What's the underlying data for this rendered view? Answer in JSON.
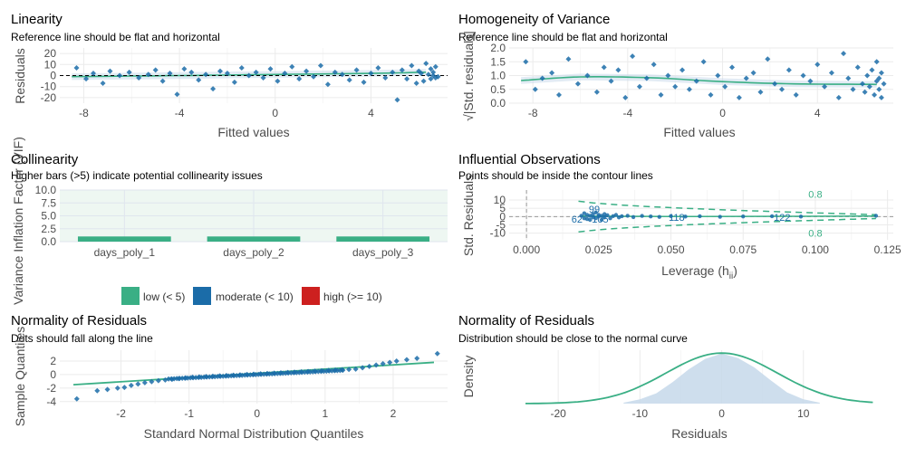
{
  "colors": {
    "green": "#3aaf85",
    "blue": "#1b6ca8",
    "red": "#cd201f",
    "point": "#1b6ca8",
    "band": "#c6d8ea"
  },
  "chart_data": [
    {
      "id": "linearity",
      "type": "scatter",
      "title": "Linearity",
      "subtitle": "Reference line should be flat and horizontal",
      "xlabel": "Fitted values",
      "ylabel": "Residuals",
      "xlim": [
        -9,
        7.2
      ],
      "ylim": [
        -25,
        25
      ],
      "xticks": [
        -8,
        -4,
        0,
        4
      ],
      "xtick_labels": [
        "-8",
        "-4",
        "0",
        "4"
      ],
      "yticks": [
        -20,
        -10,
        0,
        10,
        20
      ],
      "ytick_labels": [
        "-20",
        "-10",
        "0",
        "10",
        "20"
      ],
      "reference_line": 0,
      "smooth_line": {
        "x": [
          -8.5,
          -4,
          0,
          4,
          6.3
        ],
        "y": [
          -1,
          0,
          1,
          2,
          3
        ]
      },
      "points": [
        [
          -8.3,
          7
        ],
        [
          -7.9,
          -3
        ],
        [
          -7.6,
          2
        ],
        [
          -7.2,
          -7
        ],
        [
          -6.9,
          4
        ],
        [
          -6.5,
          0
        ],
        [
          -6.1,
          3
        ],
        [
          -5.7,
          -2
        ],
        [
          -5.3,
          1
        ],
        [
          -5,
          5
        ],
        [
          -4.7,
          -5
        ],
        [
          -4.4,
          2
        ],
        [
          -4.1,
          -17
        ],
        [
          -3.8,
          6
        ],
        [
          -3.5,
          3
        ],
        [
          -3.2,
          -4
        ],
        [
          -2.9,
          1
        ],
        [
          -2.6,
          -12
        ],
        [
          -2.3,
          4
        ],
        [
          -2,
          2
        ],
        [
          -1.7,
          -6
        ],
        [
          -1.4,
          7
        ],
        [
          -1.1,
          0
        ],
        [
          -0.8,
          3
        ],
        [
          -0.5,
          -2
        ],
        [
          -0.2,
          6
        ],
        [
          0.1,
          -5
        ],
        [
          0.4,
          2
        ],
        [
          0.7,
          8
        ],
        [
          1,
          -3
        ],
        [
          1.3,
          4
        ],
        [
          1.6,
          -1
        ],
        [
          1.9,
          9
        ],
        [
          2.2,
          -8
        ],
        [
          2.5,
          3
        ],
        [
          2.8,
          1
        ],
        [
          3.1,
          -4
        ],
        [
          3.4,
          5
        ],
        [
          3.7,
          -6
        ],
        [
          4,
          2
        ],
        [
          4.3,
          7
        ],
        [
          4.6,
          -2
        ],
        [
          4.9,
          3
        ],
        [
          5.1,
          -22
        ],
        [
          5.3,
          5
        ],
        [
          5.5,
          -3
        ],
        [
          5.7,
          9
        ],
        [
          5.9,
          -7
        ],
        [
          6,
          4
        ],
        [
          6.1,
          2
        ],
        [
          6.2,
          -5
        ],
        [
          6.3,
          11
        ],
        [
          6.4,
          1
        ],
        [
          6.5,
          -3
        ],
        [
          6.5,
          6
        ],
        [
          6.6,
          0
        ],
        [
          6.6,
          3
        ],
        [
          6.7,
          -2
        ],
        [
          6.7,
          8
        ],
        [
          6.8,
          -1
        ]
      ]
    },
    {
      "id": "homogeneity",
      "type": "scatter",
      "title": "Homogeneity of Variance",
      "subtitle": "Reference line should be flat and horizontal",
      "xlabel": "Fitted values",
      "ylabel": "√|Std. residuals|",
      "xlim": [
        -9,
        7.2
      ],
      "ylim": [
        0,
        2
      ],
      "xticks": [
        -8,
        -4,
        0,
        4
      ],
      "xtick_labels": [
        "-8",
        "-4",
        "0",
        "4"
      ],
      "yticks": [
        0,
        0.5,
        1,
        1.5,
        2
      ],
      "ytick_labels": [
        "0.0",
        "0.5",
        "1.0",
        "1.5",
        "2.0"
      ],
      "smooth_line": {
        "x": [
          -8.5,
          -6,
          -3,
          0,
          3,
          6.5
        ],
        "y": [
          0.82,
          0.95,
          0.92,
          0.78,
          0.7,
          0.68
        ]
      },
      "points": [
        [
          -8.3,
          1.5
        ],
        [
          -7.9,
          0.5
        ],
        [
          -7.6,
          0.9
        ],
        [
          -7.2,
          1.1
        ],
        [
          -6.9,
          0.3
        ],
        [
          -6.5,
          1.6
        ],
        [
          -6.1,
          0.7
        ],
        [
          -5.7,
          1.0
        ],
        [
          -5.3,
          0.4
        ],
        [
          -5,
          1.3
        ],
        [
          -4.7,
          0.8
        ],
        [
          -4.4,
          1.2
        ],
        [
          -4.1,
          0.2
        ],
        [
          -3.8,
          1.7
        ],
        [
          -3.5,
          0.6
        ],
        [
          -3.2,
          0.9
        ],
        [
          -2.9,
          1.4
        ],
        [
          -2.6,
          0.3
        ],
        [
          -2.3,
          1.0
        ],
        [
          -2,
          0.6
        ],
        [
          -1.7,
          1.2
        ],
        [
          -1.4,
          0.5
        ],
        [
          -1.1,
          0.8
        ],
        [
          -0.8,
          1.5
        ],
        [
          -0.5,
          0.3
        ],
        [
          -0.2,
          1.0
        ],
        [
          0.1,
          0.6
        ],
        [
          0.4,
          1.3
        ],
        [
          0.7,
          0.2
        ],
        [
          1,
          0.9
        ],
        [
          1.3,
          1.1
        ],
        [
          1.6,
          0.4
        ],
        [
          1.9,
          1.6
        ],
        [
          2.2,
          0.7
        ],
        [
          2.5,
          0.5
        ],
        [
          2.8,
          1.2
        ],
        [
          3.1,
          0.3
        ],
        [
          3.4,
          1.0
        ],
        [
          3.7,
          0.8
        ],
        [
          4,
          1.4
        ],
        [
          4.3,
          0.6
        ],
        [
          4.6,
          1.1
        ],
        [
          4.9,
          0.2
        ],
        [
          5.1,
          1.8
        ],
        [
          5.3,
          0.9
        ],
        [
          5.5,
          0.5
        ],
        [
          5.7,
          1.3
        ],
        [
          5.9,
          0.7
        ],
        [
          6,
          0.4
        ],
        [
          6.1,
          1.0
        ],
        [
          6.2,
          0.6
        ],
        [
          6.3,
          1.2
        ],
        [
          6.4,
          0.3
        ],
        [
          6.5,
          0.8
        ],
        [
          6.5,
          1.5
        ],
        [
          6.6,
          0.5
        ],
        [
          6.6,
          0.9
        ],
        [
          6.7,
          0.2
        ],
        [
          6.7,
          1.1
        ],
        [
          6.8,
          0.7
        ]
      ]
    },
    {
      "id": "collinearity",
      "type": "bar",
      "title": "Collinearity",
      "subtitle": "Higher bars (>5) indicate potential collinearity issues",
      "xlabel": "",
      "ylabel": "Variance Inflation Factor (VIF)",
      "categories": [
        "days_poly_1",
        "days_poly_2",
        "days_poly_3"
      ],
      "values": [
        1,
        1,
        1
      ],
      "ylim": [
        0,
        10
      ],
      "yticks": [
        0,
        2.5,
        5,
        7.5,
        10
      ],
      "ytick_labels": [
        "0.0",
        "2.5",
        "5.0",
        "7.5",
        "10.0"
      ],
      "legend_position": "bottom",
      "legend": [
        {
          "label": "low (< 5)",
          "color": "#3aaf85"
        },
        {
          "label": "moderate (< 10)",
          "color": "#1b6ca8"
        },
        {
          "label": "high (>= 10)",
          "color": "#cd201f"
        }
      ]
    },
    {
      "id": "influential",
      "type": "scatter",
      "title": "Influential Observations",
      "subtitle": "Points should be inside the contour lines",
      "xlabel": "Leverage (h",
      "xlabel_sub": "ii",
      "xlabel_end": ")",
      "ylabel": "Std. Residuals",
      "xlim": [
        -0.006,
        0.127
      ],
      "ylim": [
        -14,
        16
      ],
      "xticks": [
        0,
        0.025,
        0.05,
        0.075,
        0.1,
        0.125
      ],
      "xtick_labels": [
        "0.000",
        "0.025",
        "0.050",
        "0.075",
        "0.100",
        "0.125"
      ],
      "yticks": [
        -10,
        -5,
        0,
        5,
        10
      ],
      "ytick_labels": [
        "-10",
        "-5",
        "0",
        "5",
        "10"
      ],
      "contour_label": "0.8",
      "labels": [
        {
          "text": "99",
          "x": 0.0235,
          "y": 2.5
        },
        {
          "text": "62",
          "x": 0.0175,
          "y": -3.5
        },
        {
          "text": "105",
          "x": 0.0255,
          "y": -3.5
        },
        {
          "text": "118",
          "x": 0.052,
          "y": -2.5
        },
        {
          "text": "122",
          "x": 0.0885,
          "y": -2.5
        }
      ],
      "points": [
        [
          0.019,
          0.5
        ],
        [
          0.02,
          -1
        ],
        [
          0.02,
          2
        ],
        [
          0.021,
          -1.5
        ],
        [
          0.021,
          1
        ],
        [
          0.022,
          -2
        ],
        [
          0.022,
          0.5
        ],
        [
          0.023,
          1.5
        ],
        [
          0.023,
          -0.5
        ],
        [
          0.024,
          2.5
        ],
        [
          0.024,
          -1
        ],
        [
          0.025,
          0
        ],
        [
          0.025,
          1
        ],
        [
          0.026,
          -2
        ],
        [
          0.026,
          0.5
        ],
        [
          0.027,
          1.5
        ],
        [
          0.027,
          -0.5
        ],
        [
          0.028,
          0.8
        ],
        [
          0.029,
          -1
        ],
        [
          0.03,
          0.3
        ],
        [
          0.031,
          1
        ],
        [
          0.032,
          -0.5
        ],
        [
          0.033,
          0.2
        ],
        [
          0.035,
          0.5
        ],
        [
          0.037,
          -0.3
        ],
        [
          0.04,
          0.4
        ],
        [
          0.043,
          0.1
        ],
        [
          0.046,
          -0.2
        ],
        [
          0.05,
          0.3
        ],
        [
          0.055,
          0
        ],
        [
          0.06,
          0.2
        ],
        [
          0.067,
          -0.1
        ],
        [
          0.075,
          0.1
        ],
        [
          0.085,
          0.2
        ],
        [
          0.095,
          0
        ],
        [
          0.121,
          0.5
        ]
      ]
    },
    {
      "id": "qq",
      "type": "scatter",
      "title": "Normality of Residuals",
      "subtitle": "Dots should fall along the line",
      "xlabel": "Standard Normal Distribution Quantiles",
      "ylabel": "Sample Quantiles",
      "xlim": [
        -2.9,
        2.8
      ],
      "ylim": [
        -4.3,
        3.6
      ],
      "xticks": [
        -2,
        -1,
        0,
        1,
        2
      ],
      "xtick_labels": [
        "-2",
        "-1",
        "0",
        "1",
        "2"
      ],
      "yticks": [
        -4,
        -2,
        0,
        2
      ],
      "ytick_labels": [
        "-4",
        "-2",
        "0",
        "2"
      ],
      "reference_line": {
        "x": [
          -2.7,
          2.6
        ],
        "y": [
          -1.5,
          1.8
        ]
      },
      "points_x": [
        -2.65,
        -2.35,
        -2.2,
        -2.05,
        -1.95,
        -1.85,
        -1.75,
        -1.65,
        -1.55,
        -1.45,
        -1.35,
        -1.25,
        -1.15,
        -1.05,
        -0.95,
        -0.85,
        -0.75,
        -0.65,
        -0.55,
        -0.45,
        -0.35,
        -0.25,
        -0.15,
        -0.05,
        0.05,
        0.15,
        0.25,
        0.35,
        0.45,
        0.55,
        0.65,
        0.75,
        0.85,
        0.95,
        1.05,
        1.15,
        1.25,
        1.35,
        1.45,
        1.55,
        1.65,
        1.75,
        1.85,
        1.95,
        2.05,
        2.2,
        2.35,
        2.65
      ],
      "points_y": [
        -3.6,
        -2.4,
        -2.2,
        -2,
        -1.9,
        -1.6,
        -1.4,
        -1.2,
        -1.05,
        -0.9,
        -0.8,
        -0.7,
        -0.6,
        -0.5,
        -0.4,
        -0.35,
        -0.3,
        -0.25,
        -0.2,
        -0.15,
        -0.1,
        -0.05,
        0,
        0.05,
        0.1,
        0.15,
        0.2,
        0.25,
        0.3,
        0.35,
        0.4,
        0.45,
        0.5,
        0.55,
        0.6,
        0.65,
        0.7,
        0.75,
        0.8,
        1.0,
        1.2,
        1.4,
        1.6,
        1.8,
        2,
        2.2,
        2.4,
        3.1
      ]
    },
    {
      "id": "density",
      "type": "area",
      "title": "Normality of Residuals",
      "subtitle": "Distribution should be close to the normal curve",
      "xlabel": "Residuals",
      "ylabel": "Density",
      "xlim": [
        -26,
        21
      ],
      "ylim": [
        0,
        0.062
      ],
      "xticks": [
        -20,
        -10,
        0,
        10
      ],
      "xtick_labels": [
        "-20",
        "-10",
        "0",
        "10"
      ],
      "normal_curve": {
        "mean": 0,
        "sd": 6.8,
        "xrange": [
          -24,
          18.5
        ]
      },
      "density_x": [
        -12,
        -10,
        -8,
        -6,
        -4,
        -2,
        0,
        2,
        4,
        6,
        8,
        10,
        12
      ],
      "density_y": [
        0.001,
        0.005,
        0.012,
        0.025,
        0.04,
        0.052,
        0.058,
        0.053,
        0.042,
        0.027,
        0.013,
        0.005,
        0.001
      ]
    }
  ]
}
